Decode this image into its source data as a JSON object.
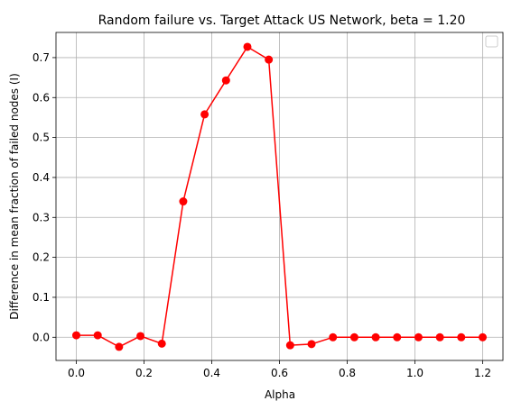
{
  "chart_data": {
    "type": "line",
    "title": "Random failure vs. Target Attack US Network, beta = 1.20",
    "xlabel": "Alpha",
    "ylabel": "Difference in mean fraction of failed nodes (I)",
    "xlim": [
      -0.06,
      1.26
    ],
    "ylim": [
      -0.058,
      0.763
    ],
    "x_ticks": [
      0.0,
      0.2,
      0.4,
      0.6,
      0.8,
      1.0,
      1.2
    ],
    "x_tick_labels": [
      "0.0",
      "0.2",
      "0.4",
      "0.6",
      "0.8",
      "1.0",
      "1.2"
    ],
    "y_ticks": [
      0.0,
      0.1,
      0.2,
      0.3,
      0.4,
      0.5,
      0.6,
      0.7
    ],
    "y_tick_labels": [
      "0.0",
      "0.1",
      "0.2",
      "0.3",
      "0.4",
      "0.5",
      "0.6",
      "0.7"
    ],
    "grid": true,
    "legend": "upper right (empty)",
    "series": [
      {
        "color": "#ff0000",
        "marker": "circle",
        "x": [
          0.0,
          0.0632,
          0.1263,
          0.1895,
          0.2526,
          0.3158,
          0.3789,
          0.4421,
          0.5053,
          0.5684,
          0.6316,
          0.6947,
          0.7579,
          0.8211,
          0.8842,
          0.9474,
          1.0105,
          1.0737,
          1.1368,
          1.2
        ],
        "y": [
          0.005,
          0.005,
          -0.024,
          0.003,
          -0.016,
          0.34,
          0.558,
          0.643,
          0.727,
          0.695,
          -0.02,
          -0.017,
          0.0,
          0.0,
          0.0,
          0.0,
          0.0,
          0.0,
          0.0,
          0.0
        ]
      }
    ]
  }
}
